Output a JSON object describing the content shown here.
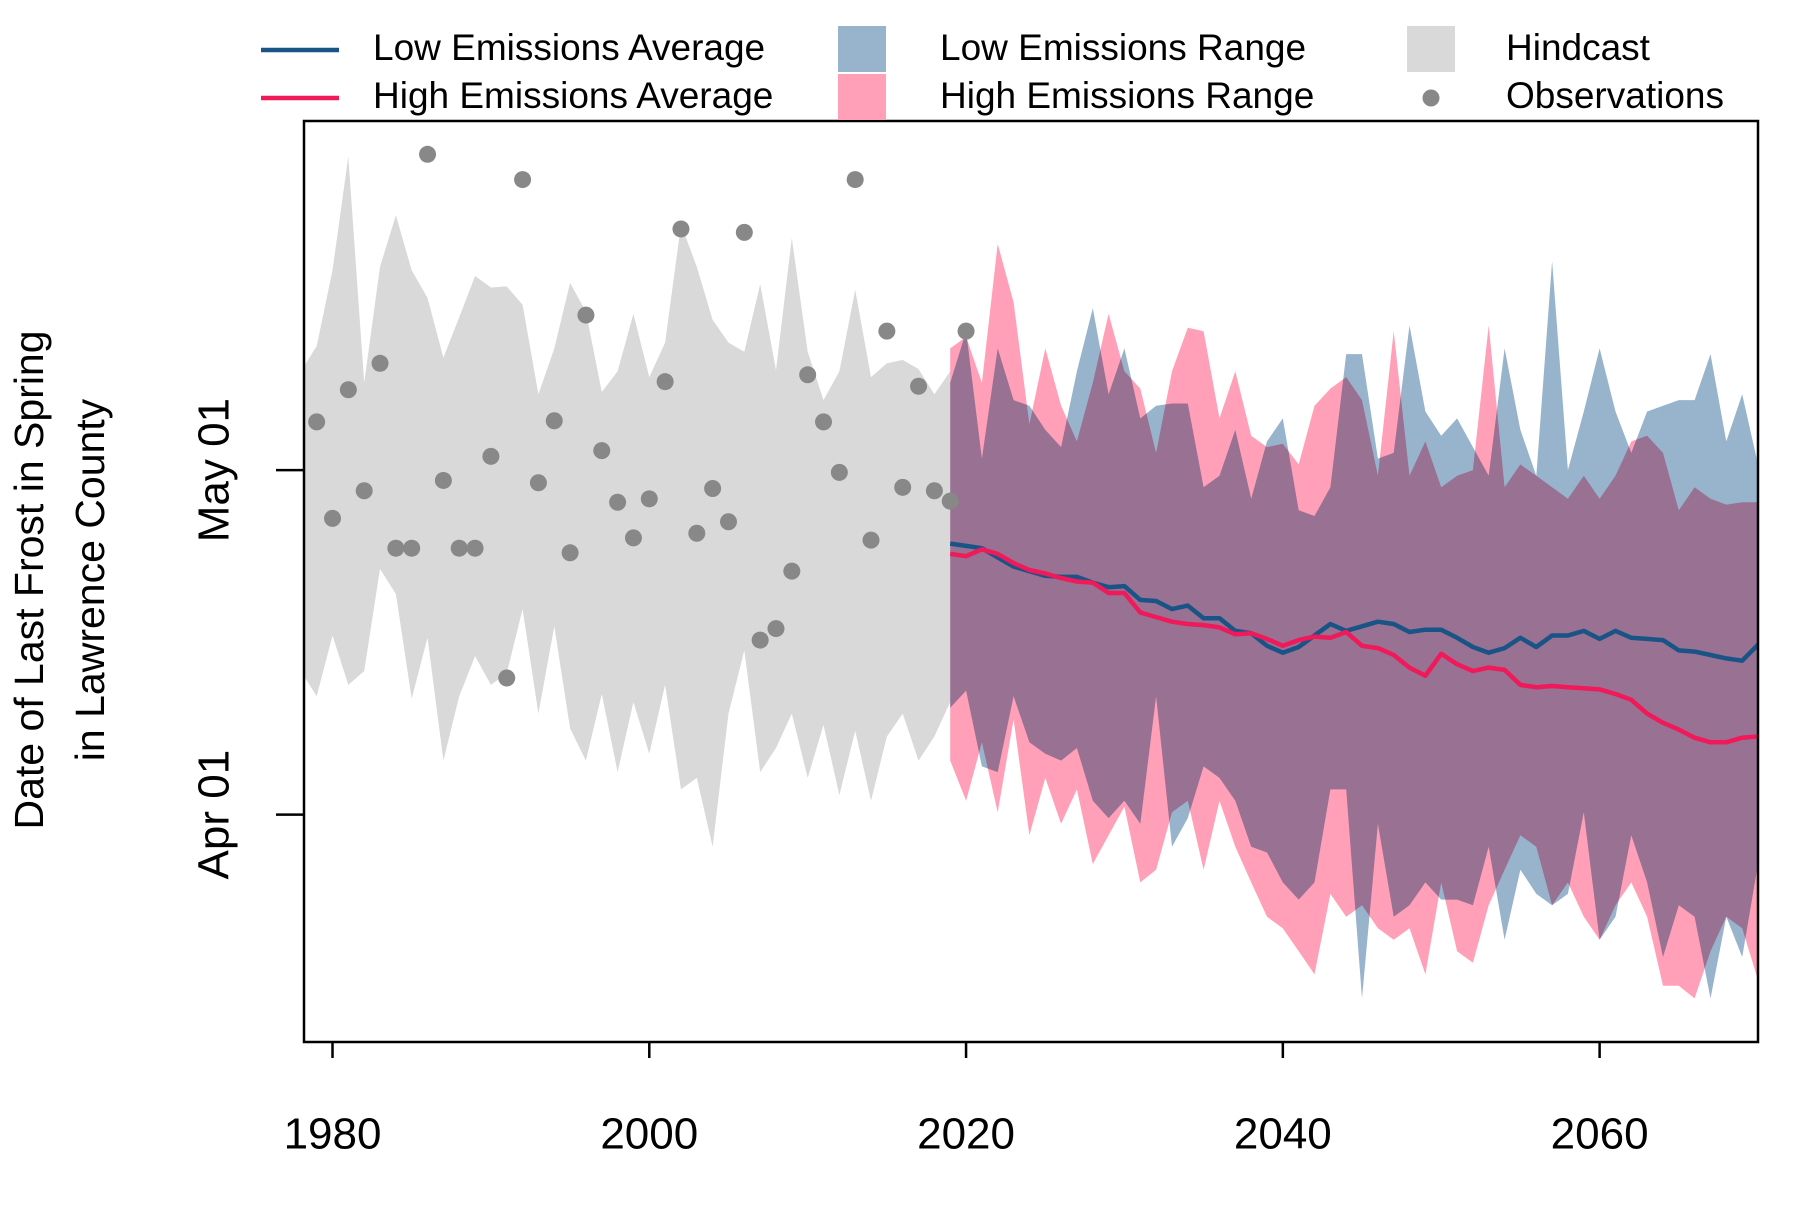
{
  "chart_data": {
    "type": "line",
    "ylabel": [
      "Date of Last Frost in Spring",
      "in Lawrence County"
    ],
    "xlim": [
      1978.2,
      2070
    ],
    "ylim": [
      71.2,
      151.4
    ],
    "xticks": [
      1980,
      2000,
      2020,
      2040,
      2060
    ],
    "yticks": [
      {
        "value": 91,
        "label": "Apr 01"
      },
      {
        "value": 121,
        "label": "May 01"
      }
    ],
    "series": [
      {
        "name": "Low Emissions Average",
        "kind": "line",
        "color": "#1a5487",
        "x": [
          2019,
          2020,
          2021,
          2022,
          2023,
          2024,
          2025,
          2026,
          2027,
          2028,
          2029,
          2030,
          2031,
          2032,
          2033,
          2034,
          2035,
          2036,
          2037,
          2038,
          2039,
          2040,
          2041,
          2042,
          2043,
          2044,
          2045,
          2046,
          2047,
          2048,
          2049,
          2050,
          2051,
          2052,
          2053,
          2054,
          2055,
          2056,
          2057,
          2058,
          2059,
          2060,
          2061,
          2062,
          2063,
          2064,
          2065,
          2066,
          2067,
          2068,
          2069,
          2070
        ],
        "values": [
          114.6,
          114.4,
          114.2,
          113.4,
          112.6,
          112.2,
          111.8,
          111.7,
          111.7,
          111.2,
          110.8,
          110.9,
          109.7,
          109.6,
          108.9,
          109.2,
          108.1,
          108.1,
          107.0,
          106.8,
          105.7,
          105.1,
          105.6,
          106.6,
          107.6,
          107.0,
          107.4,
          107.8,
          107.6,
          106.9,
          107.1,
          107.1,
          106.4,
          105.6,
          105.1,
          105.5,
          106.4,
          105.6,
          106.6,
          106.6,
          107.0,
          106.3,
          107.0,
          106.4,
          106.3,
          106.2,
          105.3,
          105.2,
          104.9,
          104.6,
          104.4,
          105.8
        ]
      },
      {
        "name": "High Emissions Average",
        "kind": "line",
        "color": "#f0195a",
        "x": [
          2019,
          2020,
          2021,
          2022,
          2023,
          2024,
          2025,
          2026,
          2027,
          2028,
          2029,
          2030,
          2031,
          2032,
          2033,
          2034,
          2035,
          2036,
          2037,
          2038,
          2039,
          2040,
          2041,
          2042,
          2043,
          2044,
          2045,
          2046,
          2047,
          2048,
          2049,
          2050,
          2051,
          2052,
          2053,
          2054,
          2055,
          2056,
          2057,
          2058,
          2059,
          2060,
          2061,
          2062,
          2063,
          2064,
          2065,
          2066,
          2067,
          2068,
          2069,
          2070
        ],
        "values": [
          113.7,
          113.5,
          114.1,
          113.7,
          112.9,
          112.3,
          112.0,
          111.6,
          111.3,
          111.2,
          110.3,
          110.3,
          108.6,
          108.2,
          107.8,
          107.6,
          107.5,
          107.3,
          106.7,
          106.8,
          106.3,
          105.7,
          106.2,
          106.5,
          106.4,
          106.9,
          105.7,
          105.5,
          104.9,
          103.8,
          103.1,
          105.0,
          104.1,
          103.5,
          103.8,
          103.6,
          102.3,
          102.1,
          102.2,
          102.1,
          102.0,
          101.9,
          101.5,
          101.0,
          99.8,
          99.0,
          98.4,
          97.7,
          97.3,
          97.3,
          97.7,
          97.8
        ]
      },
      {
        "name": "Low Emissions Range",
        "kind": "band",
        "color": "#98b4cc",
        "x": [
          2019,
          2020,
          2021,
          2022,
          2023,
          2024,
          2025,
          2026,
          2027,
          2028,
          2029,
          2030,
          2031,
          2032,
          2033,
          2034,
          2035,
          2036,
          2037,
          2038,
          2039,
          2040,
          2041,
          2042,
          2043,
          2044,
          2045,
          2046,
          2047,
          2048,
          2049,
          2050,
          2051,
          2052,
          2053,
          2054,
          2055,
          2056,
          2057,
          2058,
          2059,
          2060,
          2061,
          2062,
          2063,
          2064,
          2065,
          2066,
          2067,
          2068,
          2069,
          2070
        ],
        "upper": [
          128.6,
          133.1,
          122.0,
          131.6,
          127.1,
          126.6,
          124.5,
          123.0,
          129.6,
          135.1,
          127.6,
          131.6,
          125.5,
          126.6,
          126.8,
          126.8,
          119.5,
          120.5,
          124.5,
          118.5,
          123.5,
          125.5,
          117.5,
          117.0,
          119.5,
          131.1,
          131.1,
          122.0,
          122.5,
          133.6,
          126.1,
          124.0,
          125.5,
          123.0,
          120.5,
          131.6,
          124.5,
          120.5,
          139.2,
          121.0,
          126.1,
          131.6,
          126.1,
          122.5,
          126.1,
          126.6,
          127.1,
          127.1,
          131.1,
          123.5,
          127.6,
          121.5
        ],
        "lower": [
          100.3,
          101.8,
          95.2,
          94.7,
          101.3,
          97.3,
          96.3,
          95.7,
          96.8,
          92.2,
          90.7,
          92.2,
          90.2,
          101.3,
          88.2,
          90.7,
          95.2,
          94.2,
          92.2,
          88.2,
          87.7,
          85.1,
          83.6,
          85.1,
          93.2,
          93.2,
          75.0,
          90.2,
          82.1,
          83.1,
          85.1,
          83.6,
          83.6,
          83.1,
          88.2,
          80.1,
          86.2,
          84.1,
          83.1,
          84.1,
          91.2,
          80.1,
          82.1,
          89.2,
          85.1,
          78.6,
          83.1,
          82.1,
          75.0,
          82.1,
          78.6,
          86.7
        ]
      },
      {
        "name": "High Emissions Range",
        "kind": "band",
        "color": "#ffa0b8",
        "x": [
          2019,
          2020,
          2021,
          2022,
          2023,
          2024,
          2025,
          2026,
          2027,
          2028,
          2029,
          2030,
          2031,
          2032,
          2033,
          2034,
          2035,
          2036,
          2037,
          2038,
          2039,
          2040,
          2041,
          2042,
          2043,
          2044,
          2045,
          2046,
          2047,
          2048,
          2049,
          2050,
          2051,
          2052,
          2053,
          2054,
          2055,
          2056,
          2057,
          2058,
          2059,
          2060,
          2061,
          2062,
          2063,
          2064,
          2065,
          2066,
          2067,
          2068,
          2069,
          2070
        ],
        "upper": [
          131.6,
          132.6,
          128.6,
          140.7,
          135.6,
          125.0,
          131.6,
          126.6,
          123.5,
          128.6,
          134.6,
          129.6,
          128.1,
          122.5,
          129.6,
          133.4,
          133.1,
          125.5,
          129.6,
          124.0,
          123.0,
          123.3,
          121.5,
          126.6,
          128.1,
          129.1,
          127.1,
          120.5,
          133.1,
          120.5,
          123.5,
          119.5,
          120.5,
          121.0,
          133.6,
          119.5,
          121.5,
          120.5,
          119.5,
          118.5,
          120.5,
          118.5,
          120.5,
          123.5,
          124.0,
          122.5,
          117.5,
          119.5,
          118.5,
          118.0,
          118.2,
          118.2
        ],
        "lower": [
          95.7,
          92.2,
          97.3,
          91.2,
          99.3,
          89.2,
          94.2,
          90.2,
          93.2,
          86.7,
          89.2,
          91.7,
          85.1,
          86.2,
          91.2,
          92.2,
          86.2,
          92.2,
          88.2,
          85.1,
          82.1,
          81.1,
          79.1,
          77.1,
          84.1,
          82.1,
          83.1,
          81.1,
          80.1,
          81.1,
          77.1,
          85.1,
          79.1,
          78.1,
          83.1,
          86.2,
          89.2,
          88.2,
          83.1,
          85.1,
          82.1,
          80.1,
          83.1,
          85.1,
          82.1,
          76.1,
          76.1,
          75.0,
          79.1,
          82.1,
          81.1,
          76.6
        ]
      },
      {
        "name": "Hindcast",
        "kind": "band",
        "color": "#d9d9d9",
        "x": [
          1978,
          1979,
          1980,
          1981,
          1982,
          1983,
          1984,
          1985,
          1986,
          1987,
          1988,
          1989,
          1990,
          1991,
          1992,
          1993,
          1994,
          1995,
          1996,
          1997,
          1998,
          1999,
          2000,
          2001,
          2002,
          2003,
          2004,
          2005,
          2006,
          2007,
          2008,
          2009,
          2010,
          2011,
          2012,
          2013,
          2014,
          2015,
          2016,
          2017,
          2018,
          2019
        ],
        "upper": [
          129.6,
          131.8,
          138.4,
          148.3,
          128.6,
          138.7,
          143.2,
          138.4,
          136.0,
          130.8,
          134.3,
          137.9,
          136.9,
          137.0,
          135.4,
          127.6,
          131.6,
          137.3,
          134.8,
          127.8,
          129.6,
          134.6,
          129.1,
          132.1,
          142.4,
          138.7,
          134.1,
          132.1,
          131.3,
          137.2,
          129.7,
          141.2,
          131.3,
          127.1,
          129.6,
          136.7,
          129.1,
          130.3,
          130.6,
          129.8,
          127.6,
          129.6
        ],
        "lower": [
          103.5,
          101.3,
          106.6,
          102.3,
          103.5,
          112.4,
          110.2,
          101.1,
          106.4,
          95.7,
          101.3,
          104.8,
          102.3,
          103.3,
          108.9,
          99.8,
          107.4,
          98.5,
          95.7,
          101.5,
          94.7,
          100.8,
          96.3,
          102.3,
          93.2,
          94.2,
          88.2,
          99.8,
          105.3,
          94.7,
          96.8,
          99.8,
          94.2,
          98.8,
          92.7,
          98.3,
          92.2,
          97.8,
          99.8,
          95.7,
          97.8,
          100.8
        ]
      },
      {
        "name": "Observations",
        "kind": "points",
        "color": "#888888",
        "x": [
          1979,
          1980,
          1981,
          1982,
          1983,
          1984,
          1985,
          1986,
          1987,
          1988,
          1989,
          1990,
          1991,
          1992,
          1993,
          1994,
          1995,
          1996,
          1997,
          1998,
          1999,
          2000,
          2001,
          2002,
          2003,
          2004,
          2005,
          2006,
          2007,
          2008,
          2009,
          2010,
          2011,
          2012,
          2013,
          2014,
          2015,
          2016,
          2017,
          2018,
          2019,
          2020
        ],
        "values": [
          125.2,
          116.8,
          128.0,
          119.2,
          130.3,
          114.2,
          114.2,
          148.5,
          120.1,
          114.2,
          114.2,
          122.2,
          102.9,
          146.3,
          119.9,
          125.3,
          113.8,
          134.5,
          122.7,
          118.2,
          115.1,
          118.5,
          128.7,
          142.0,
          115.5,
          119.4,
          116.5,
          141.7,
          106.2,
          107.2,
          112.2,
          129.3,
          125.2,
          120.8,
          146.3,
          114.9,
          133.1,
          119.5,
          128.3,
          119.2,
          118.3,
          133.1
        ]
      }
    ]
  }
}
